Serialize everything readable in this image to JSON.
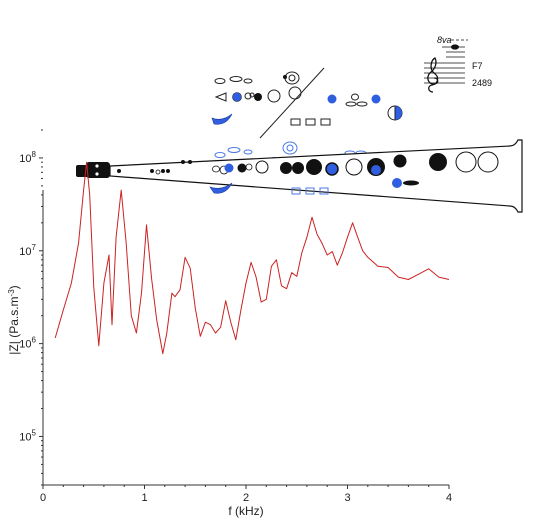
{
  "chart_data": {
    "type": "line",
    "title": "",
    "xlabel": "f (kHz)",
    "ylabel": "|Z| (Pa.s.m",
    "ylabel_sup": "-3",
    "ylabel_close": ")",
    "xlim": [
      0,
      4
    ],
    "ylim": [
      30000,
      200000000
    ],
    "yscale": "log",
    "grid": false,
    "x_ticks": [
      0,
      1,
      2,
      3,
      4
    ],
    "x_tick_labels": [
      "0",
      "1",
      "2",
      "3",
      "4"
    ],
    "y_ticks": [
      100000,
      1000000,
      10000000,
      100000000
    ],
    "y_tick_base": "10",
    "y_tick_exponents": [
      "5",
      "6",
      "7",
      "8"
    ],
    "series": [
      {
        "color": "#cc2222",
        "x": [
          0.12,
          0.2,
          0.28,
          0.35,
          0.4,
          0.43,
          0.46,
          0.5,
          0.55,
          0.6,
          0.65,
          0.68,
          0.72,
          0.77,
          0.82,
          0.87,
          0.92,
          0.97,
          1.02,
          1.07,
          1.12,
          1.18,
          1.22,
          1.27,
          1.3,
          1.35,
          1.4,
          1.45,
          1.5,
          1.55,
          1.6,
          1.65,
          1.7,
          1.75,
          1.8,
          1.85,
          1.9,
          1.95,
          2.0,
          2.05,
          2.1,
          2.15,
          2.2,
          2.25,
          2.3,
          2.35,
          2.4,
          2.45,
          2.5,
          2.55,
          2.6,
          2.65,
          2.7,
          2.75,
          2.8,
          2.85,
          2.9,
          2.95,
          3.0,
          3.05,
          3.1,
          3.15,
          3.2,
          3.3,
          3.4,
          3.5,
          3.6,
          3.7,
          3.8,
          3.9,
          4.0
        ],
        "y": [
          1150000,
          2300000,
          4500000,
          12000000,
          45000000,
          90000000,
          40000000,
          4000000,
          950000,
          4500000,
          9000000,
          1600000,
          14000000,
          45000000,
          12000000,
          2000000,
          1300000,
          3500000,
          19000000,
          5000000,
          1800000,
          780000,
          1300000,
          3500000,
          3200000,
          3800000,
          8500000,
          6500000,
          2400000,
          1200000,
          1700000,
          1600000,
          1300000,
          1500000,
          2900000,
          1700000,
          1100000,
          2300000,
          4500000,
          7500000,
          5200000,
          2800000,
          3000000,
          6800000,
          8000000,
          4200000,
          3900000,
          5800000,
          5300000,
          9500000,
          14000000,
          23000000,
          15000000,
          12000000,
          9000000,
          9800000,
          7000000,
          9500000,
          14000000,
          20000000,
          14000000,
          10000000,
          8500000,
          6800000,
          6600000,
          5200000,
          4900000,
          5600000,
          6400000,
          5200000,
          4900000
        ]
      }
    ]
  },
  "illustration": {
    "name": "soprano-saxophone-fingering",
    "note_ottava": "8va",
    "note_name": "F7",
    "note_frequency": "2489"
  },
  "colors": {
    "line": "#cc2222",
    "axis": "#333333",
    "key_closed": "#111111",
    "key_highlight": "#2f5fe0",
    "key_open_outline": "#555555"
  }
}
